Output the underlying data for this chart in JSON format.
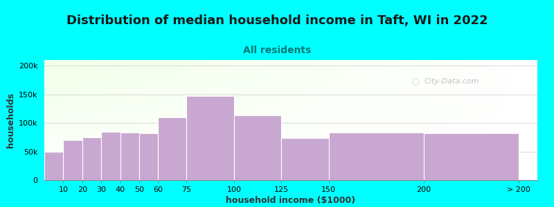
{
  "title": "Distribution of median household income in Taft, WI in 2022",
  "subtitle": "All residents",
  "xlabel": "household income ($1000)",
  "ylabel": "households",
  "background_color": "#00FFFF",
  "bar_color": "#C8A8D0",
  "bar_edgecolor": "#FFFFFF",
  "categories": [
    "10",
    "20",
    "30",
    "40",
    "50",
    "60",
    "75",
    "100",
    "125",
    "150",
    "200",
    "> 200"
  ],
  "values": [
    50000,
    70000,
    75000,
    85000,
    83000,
    82000,
    110000,
    147000,
    113000,
    74000,
    83000,
    82000
  ],
  "ylim": [
    0,
    210000
  ],
  "yticks": [
    0,
    50000,
    100000,
    150000,
    200000
  ],
  "ytick_labels": [
    "0",
    "50k",
    "100k",
    "150k",
    "200k"
  ],
  "title_fontsize": 13,
  "subtitle_fontsize": 10,
  "axis_label_fontsize": 9,
  "tick_fontsize": 8,
  "title_color": "#1a1a1a",
  "subtitle_color": "#007777",
  "watermark": "City-Data.com"
}
